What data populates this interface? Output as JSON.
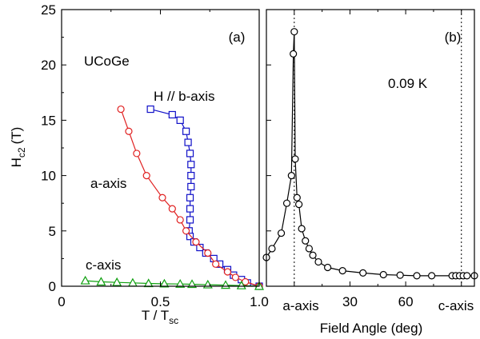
{
  "chart_data": [
    {
      "type": "line",
      "panel_label": "(a)",
      "sample_label": "UCoGe",
      "xlabel": "T / T",
      "xlabel_sub": "sc",
      "ylabel": "H",
      "ylabel_sub": "c2",
      "ylabel_unit": "(T)",
      "xlim": [
        0,
        1.0
      ],
      "ylim": [
        0,
        25
      ],
      "x_ticks": [
        "0",
        "0.5",
        "1.0"
      ],
      "y_ticks": [
        "0",
        "5",
        "10",
        "15",
        "20",
        "25"
      ],
      "grid": false,
      "series": [
        {
          "name": "H // b-axis",
          "color": "#1010c8",
          "marker": "square",
          "points": [
            [
              0.45,
              16.0
            ],
            [
              0.56,
              15.5
            ],
            [
              0.6,
              15.0
            ],
            [
              0.63,
              14.0
            ],
            [
              0.64,
              13.0
            ],
            [
              0.65,
              12.0
            ],
            [
              0.655,
              11.0
            ],
            [
              0.655,
              10.0
            ],
            [
              0.655,
              9.0
            ],
            [
              0.65,
              8.0
            ],
            [
              0.65,
              7.0
            ],
            [
              0.65,
              6.0
            ],
            [
              0.645,
              5.0
            ],
            [
              0.65,
              4.5
            ],
            [
              0.67,
              4.0
            ],
            [
              0.7,
              3.5
            ],
            [
              0.73,
              3.0
            ],
            [
              0.77,
              2.5
            ],
            [
              0.8,
              2.0
            ],
            [
              0.84,
              1.5
            ],
            [
              0.87,
              1.0
            ],
            [
              0.91,
              0.6
            ],
            [
              0.94,
              0.3
            ],
            [
              1.0,
              0.0
            ]
          ]
        },
        {
          "name": "a-axis",
          "color": "#e02020",
          "marker": "circle",
          "points": [
            [
              0.3,
              16.0
            ],
            [
              0.34,
              14.0
            ],
            [
              0.38,
              12.0
            ],
            [
              0.43,
              10.0
            ],
            [
              0.51,
              8.0
            ],
            [
              0.56,
              7.0
            ],
            [
              0.6,
              6.0
            ],
            [
              0.63,
              5.0
            ],
            [
              0.68,
              4.0
            ],
            [
              0.74,
              3.0
            ],
            [
              0.78,
              2.0
            ],
            [
              0.84,
              1.3
            ],
            [
              0.88,
              0.8
            ],
            [
              0.93,
              0.4
            ],
            [
              1.0,
              0.0
            ]
          ]
        },
        {
          "name": "c-axis",
          "color": "#10a010",
          "marker": "triangle",
          "points": [
            [
              0.12,
              0.5
            ],
            [
              0.2,
              0.4
            ],
            [
              0.28,
              0.35
            ],
            [
              0.36,
              0.3
            ],
            [
              0.44,
              0.25
            ],
            [
              0.52,
              0.22
            ],
            [
              0.6,
              0.2
            ],
            [
              0.66,
              0.18
            ],
            [
              0.74,
              0.14
            ],
            [
              0.83,
              0.1
            ],
            [
              0.91,
              0.06
            ],
            [
              1.0,
              0.0
            ]
          ]
        }
      ]
    },
    {
      "type": "line",
      "panel_label": "(b)",
      "temperature_label": "0.09 K",
      "xlabel": "Field Angle (deg)",
      "xlim": [
        -15,
        97
      ],
      "ylim": [
        0,
        25
      ],
      "x_ticks": [
        "0",
        "30",
        "60",
        "90"
      ],
      "x_tick_values": [
        0,
        30,
        60,
        90
      ],
      "bottom_labels": [
        "a-axis",
        "c-axis"
      ],
      "reference_lines": [
        0,
        90
      ],
      "grid": false,
      "series": [
        {
          "name": "",
          "color": "#000000",
          "marker": "circle",
          "points": [
            [
              -15,
              2.6
            ],
            [
              -12,
              3.4
            ],
            [
              -7,
              4.8
            ],
            [
              -4,
              7.5
            ],
            [
              -1.5,
              10.0
            ],
            [
              -0.5,
              21.0
            ],
            [
              0,
              23.0
            ],
            [
              0.5,
              11.5
            ],
            [
              1.5,
              8.0
            ],
            [
              2.5,
              7.4
            ],
            [
              4,
              5.2
            ],
            [
              6,
              4.1
            ],
            [
              8,
              3.4
            ],
            [
              10,
              2.8
            ],
            [
              13,
              2.2
            ],
            [
              18,
              1.7
            ],
            [
              26,
              1.4
            ],
            [
              37,
              1.2
            ],
            [
              48,
              1.05
            ],
            [
              57,
              1.0
            ],
            [
              66,
              0.95
            ],
            [
              74,
              0.95
            ],
            [
              85,
              0.95
            ],
            [
              87,
              0.95
            ],
            [
              89,
              0.95
            ],
            [
              91,
              0.95
            ],
            [
              93,
              0.95
            ],
            [
              97,
              0.95
            ]
          ]
        }
      ]
    }
  ]
}
